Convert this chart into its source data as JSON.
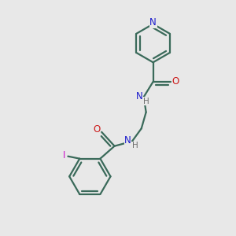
{
  "background_color": "#e8e8e8",
  "bond_color": "#3a6a5a",
  "bond_width": 1.6,
  "N_color": "#1a1acc",
  "O_color": "#cc1a1a",
  "I_color": "#cc10cc",
  "H_color": "#707070",
  "fig_size": [
    3.0,
    3.0
  ],
  "dpi": 100,
  "xlim": [
    0,
    10
  ],
  "ylim": [
    0,
    10
  ]
}
